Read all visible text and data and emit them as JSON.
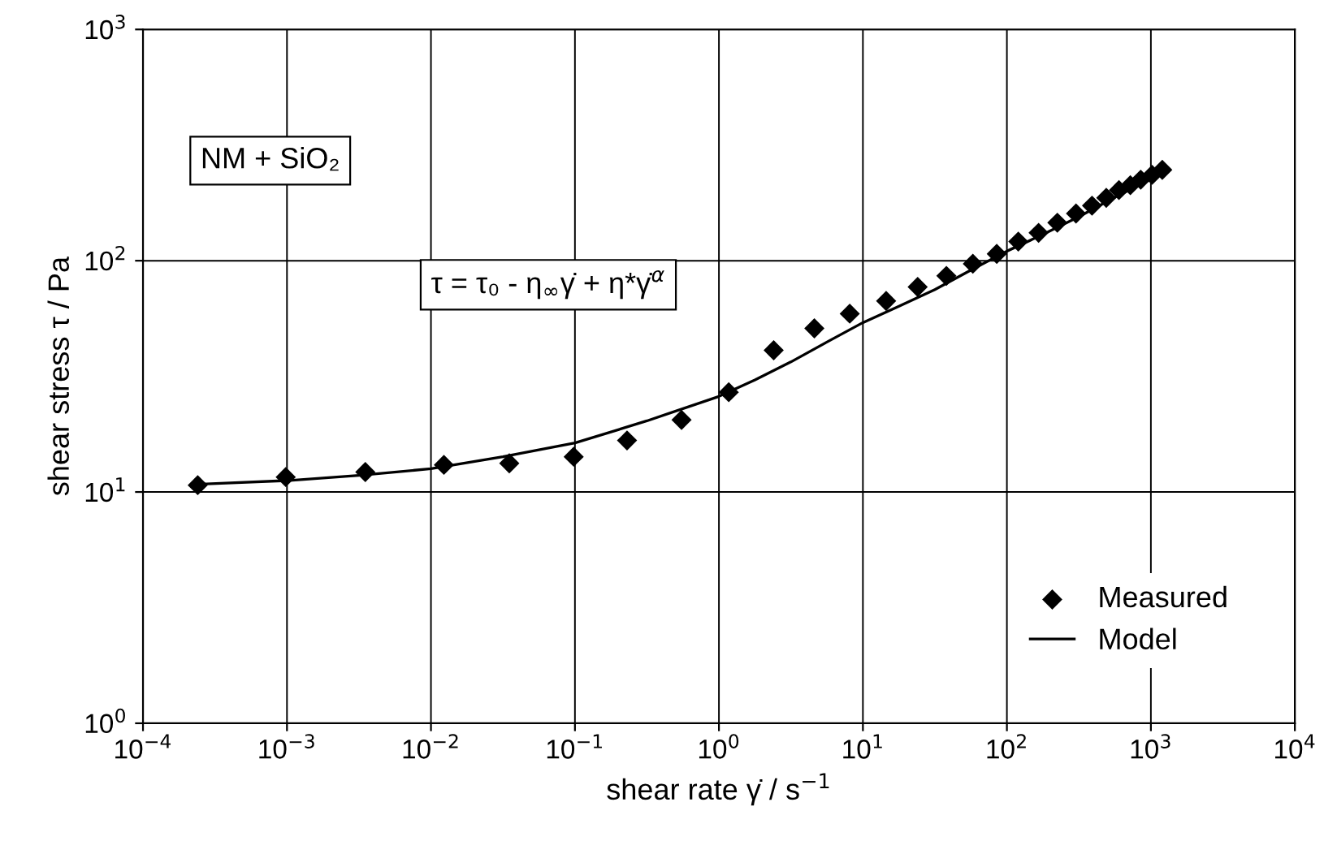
{
  "chart_data": {
    "type": "scatter",
    "xlabel": "shear rate γ̇ / s$^{−1}$",
    "ylabel": "shear stress τ / Pa",
    "log": "xy",
    "grid": true,
    "legend": "bottom right",
    "xlim": [
      0.0001,
      10000
    ],
    "ylim": [
      1,
      1000
    ],
    "xticks": [
      {
        "value": 0.0001,
        "label": "10$^{−4}$"
      },
      {
        "value": 0.001,
        "label": "10$^{−3}$"
      },
      {
        "value": 0.01,
        "label": "10$^{−2}$"
      },
      {
        "value": 0.1,
        "label": "10$^{−1}$"
      },
      {
        "value": 1,
        "label": "10$^{0}$"
      },
      {
        "value": 10,
        "label": "10$^{1}$"
      },
      {
        "value": 100,
        "label": "10$^{2}$"
      },
      {
        "value": 1000,
        "label": "10$^{3}$"
      },
      {
        "value": 10000,
        "label": "10$^{4}$"
      }
    ],
    "yticks": [
      {
        "value": 1,
        "label": "10$^{0}$"
      },
      {
        "value": 10,
        "label": "10$^{1}$"
      },
      {
        "value": 100,
        "label": "10$^{2}$"
      },
      {
        "value": 1000,
        "label": "10$^{3}$"
      }
    ],
    "annotations": [
      "NM + SiO₂",
      "τ = τ₀ - η$_{∞}$γ̇ + η*γ̇$^{α}$"
    ],
    "series": [
      {
        "name": "Measured",
        "marker": "diamond",
        "color": "#000000",
        "x": [
          0.00024,
          0.00098,
          0.0035,
          0.0123,
          0.035,
          0.098,
          0.23,
          0.55,
          1.17,
          2.4,
          4.6,
          8.1,
          14.5,
          24,
          38,
          58,
          85,
          120,
          166,
          224,
          302,
          390,
          490,
          600,
          720,
          850,
          1020,
          1200
        ],
        "values": [
          10.7,
          11.6,
          12.2,
          13.1,
          13.3,
          14.2,
          16.7,
          20.5,
          27,
          41,
          51,
          59,
          67,
          77,
          86,
          97,
          107,
          121,
          132,
          146,
          160,
          173,
          187,
          202,
          212,
          224,
          235,
          247
        ]
      },
      {
        "name": "Model",
        "type": "line",
        "marker": "none",
        "line_style": "solid",
        "color": "#000000",
        "x": [
          0.00024,
          0.001,
          0.00316,
          0.01,
          0.0316,
          0.1,
          0.316,
          1,
          1.78,
          3.16,
          5.62,
          10,
          17.8,
          31.6,
          56.2,
          100,
          178,
          316,
          562,
          1000,
          1200
        ],
        "values": [
          10.8,
          11.2,
          11.8,
          12.6,
          14.2,
          16.3,
          20.3,
          25.9,
          30.5,
          36.5,
          44.5,
          54,
          63.5,
          75,
          91,
          110,
          130,
          155,
          188,
          225,
          238
        ]
      }
    ]
  }
}
